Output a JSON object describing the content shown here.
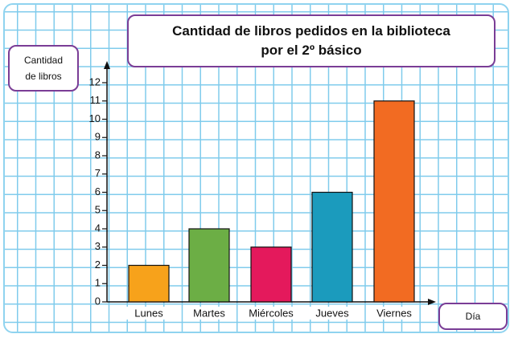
{
  "chart_data": {
    "type": "bar",
    "title": "Cantidad de libros pedidos en la biblioteca por el 2º básico",
    "y_label": "Cantidad de libros",
    "x_label": "Día",
    "categories": [
      "Lunes",
      "Martes",
      "Miércoles",
      "Jueves",
      "Viernes"
    ],
    "values": [
      2,
      4,
      3,
      6,
      11
    ],
    "colors": [
      "#f7a21b",
      "#6cae45",
      "#e4195c",
      "#1b9bbd",
      "#f26b22"
    ],
    "ylim": [
      0,
      12
    ],
    "yticks": [
      0,
      1,
      2,
      3,
      4,
      5,
      6,
      7,
      8,
      9,
      10,
      11,
      12
    ]
  }
}
